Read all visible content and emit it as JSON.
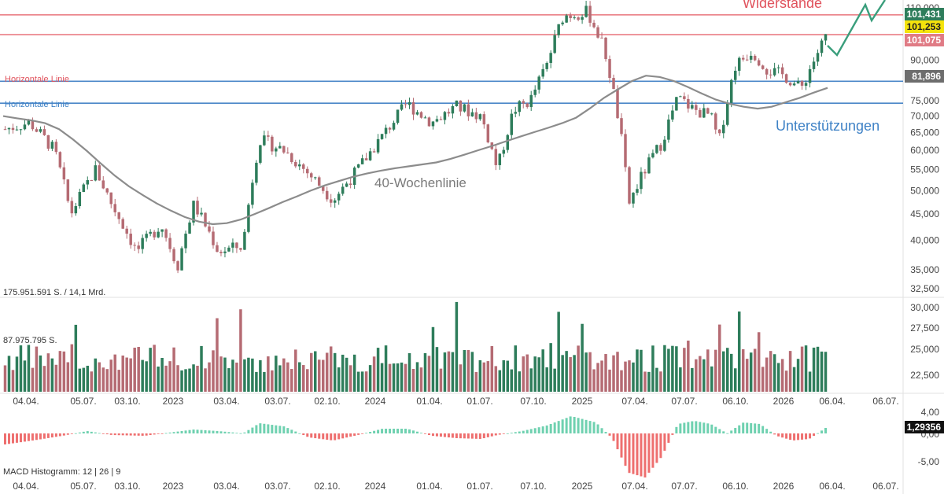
{
  "chart_data": {
    "type": "candlestick",
    "price_panel": {
      "y_ticks": [
        "35,000",
        "40,000",
        "45,000",
        "50,000",
        "55,000",
        "60,000",
        "65,000",
        "70,000",
        "75,000",
        "90,000",
        "110,000"
      ],
      "ylim": [
        32500,
        112000
      ],
      "scale": "log",
      "current_labels": [
        {
          "text": "101,431",
          "color": "#2e7d5b"
        },
        {
          "text": "101,253",
          "color": "#f4e30c"
        },
        {
          "text": "101,075",
          "color": "#e07b85"
        },
        {
          "text": "81,896",
          "color": "#6d6d6d"
        }
      ],
      "horizontal_lines": [
        {
          "value": 110500,
          "color": "#e8747c"
        },
        {
          "value": 101075,
          "color": "#e8747c"
        },
        {
          "value": 81900,
          "color": "#4a86c8"
        },
        {
          "value": 74200,
          "color": "#4a86c8"
        }
      ],
      "annotations": {
        "resistance": "Widerstände",
        "support": "Unterstützungen",
        "ma": "40-Wochenlinie",
        "hline_red": "Horizontale Linie",
        "hline_blue": "Horizontale Linie"
      },
      "ma_values": [
        70000,
        69300,
        68700,
        67800,
        66000,
        63000,
        59800,
        56500,
        53500,
        51000,
        49000,
        47200,
        45700,
        44400,
        43500,
        43000,
        43200,
        43900,
        45000,
        46200,
        47500,
        48700,
        50000,
        51200,
        52200,
        53200,
        54000,
        54700,
        55300,
        55800,
        56300,
        56800,
        57700,
        58800,
        60000,
        61200,
        62500,
        63800,
        65100,
        66400,
        67800,
        69500,
        72500,
        76000,
        79000,
        82000,
        84000,
        83500,
        82000,
        79800,
        77500,
        75400,
        74000,
        73000,
        72400,
        73000,
        74500,
        76000,
        77800,
        79500
      ]
    },
    "volume_panel": {
      "labels": [
        "175.951.591 S. / 14,1 Mrd.",
        "87.975.795 S."
      ],
      "right_ticks": [
        "32,500",
        "30,000",
        "27,500",
        "25,000",
        "22,500"
      ]
    },
    "macd_panel": {
      "title": "MACD Histogramm: 12 | 26 | 9",
      "y_ticks": [
        "4,00",
        "0,00",
        "-5,00"
      ],
      "current": "1,29356"
    },
    "x_labels": [
      "04.04.",
      "05.07.",
      "03.10.",
      "2023",
      "03.04.",
      "03.07.",
      "02.10.",
      "2024",
      "01.04.",
      "01.07.",
      "07.10.",
      "2025",
      "07.04.",
      "07.07.",
      "06.10.",
      "2026",
      "06.04.",
      "06.07."
    ],
    "colors": {
      "up": "#2e7d5b",
      "down": "#b56b73",
      "macd_pos": "#6fd1b0",
      "macd_neg": "#ee6f6f",
      "ma": "#888888",
      "projection": "#3a9e7c"
    }
  }
}
